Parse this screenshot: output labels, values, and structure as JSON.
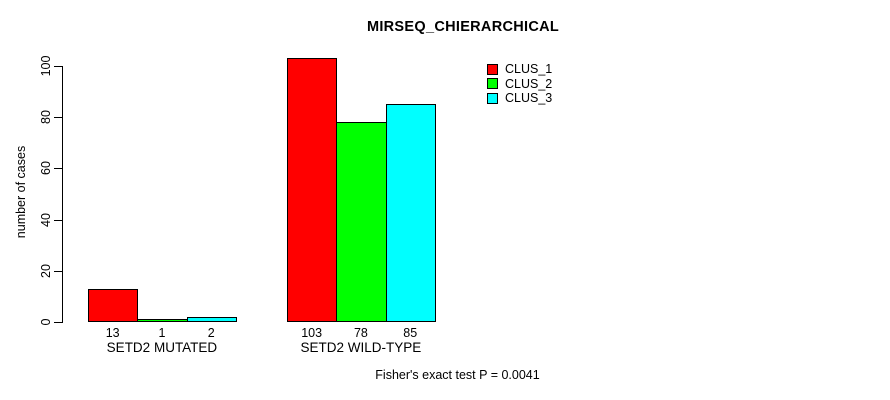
{
  "chart_data": {
    "type": "bar",
    "title": "MIRSEQ_CHIERARCHICAL",
    "xlabel": "",
    "ylabel": "number of cases",
    "ylim": [
      0,
      100
    ],
    "yticks": [
      0,
      20,
      40,
      60,
      80,
      100
    ],
    "categories": [
      "SETD2 MUTATED",
      "SETD2 WILD-TYPE"
    ],
    "series": [
      {
        "name": "CLUS_1",
        "color": "#ff0000",
        "values": [
          13,
          103
        ]
      },
      {
        "name": "CLUS_2",
        "color": "#00ff00",
        "values": [
          1,
          78
        ]
      },
      {
        "name": "CLUS_3",
        "color": "#00ffff",
        "values": [
          2,
          85
        ]
      }
    ],
    "bar_value_labels": [
      [
        13,
        1,
        2
      ],
      [
        103,
        78,
        85
      ]
    ],
    "legend_position": "top-right",
    "legend_entries": [
      "CLUS_1",
      "CLUS_2",
      "CLUS_3"
    ],
    "grid": false,
    "annotation": "Fisher's exact test P = 0.0041"
  },
  "colors": {
    "background": "#ffffff",
    "axis": "#000000",
    "bar_border": "#000000",
    "clus_1": "#ff0000",
    "clus_2": "#00ff00",
    "clus_3": "#00ffff"
  }
}
